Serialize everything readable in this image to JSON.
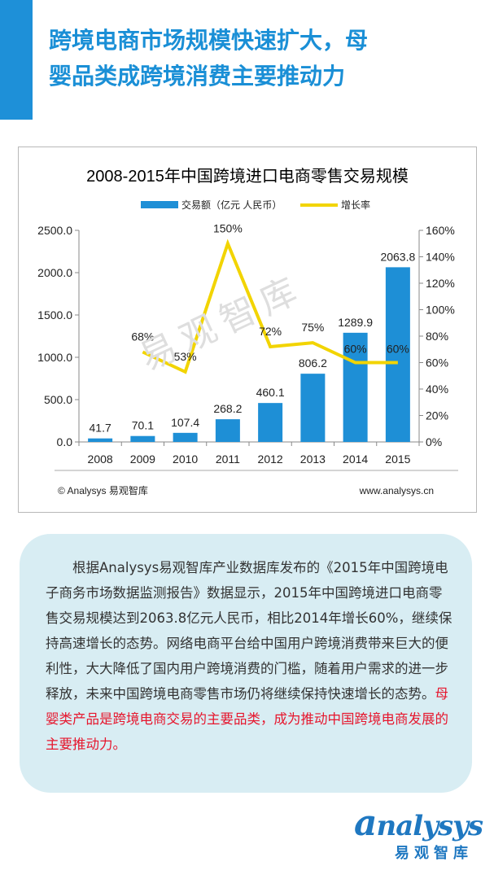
{
  "header": {
    "title_line1": "跨境电商市场规模快速扩大，母",
    "title_line2": "婴品类成跨境消费主要推动力"
  },
  "chart_data": {
    "type": "bar",
    "title": "2008-2015年中国跨境进口电商零售交易规模",
    "categories": [
      "2008",
      "2009",
      "2010",
      "2011",
      "2012",
      "2013",
      "2014",
      "2015"
    ],
    "series": [
      {
        "name": "交易额（亿元 人民币）",
        "type": "bar",
        "axis": "left",
        "color": "#1e8fd6",
        "values": [
          41.7,
          70.1,
          107.4,
          268.2,
          460.1,
          806.2,
          1289.9,
          2063.8
        ],
        "labels": [
          "41.7",
          "70.1",
          "107.4",
          "268.2",
          "460.1",
          "806.2",
          "1289.9",
          "2063.8"
        ]
      },
      {
        "name": "增长率",
        "type": "line",
        "axis": "right",
        "color": "#f2d400",
        "values": [
          null,
          68,
          53,
          150,
          72,
          75,
          60,
          60
        ],
        "labels": [
          "",
          "68%",
          "53%",
          "150%",
          "72%",
          "75%",
          "60%",
          "60%"
        ]
      }
    ],
    "ylim": [
      0,
      2500
    ],
    "y2lim": [
      0,
      160
    ],
    "yticks": [
      "0.0",
      "500.0",
      "1000.0",
      "1500.0",
      "2000.0",
      "2500.0"
    ],
    "y2ticks": [
      "0%",
      "20%",
      "40%",
      "60%",
      "80%",
      "100%",
      "120%",
      "140%",
      "160%"
    ],
    "legend": "top",
    "grid": false,
    "footer_left": "© Analysys 易观智库",
    "footer_right": "www.analysys.cn",
    "watermark": "易观智库"
  },
  "summary": {
    "normal": "根据Analysys易观智库产业数据库发布的《2015年中国跨境电子商务市场数据监测报告》数据显示，2015年中国跨境进口电商零售交易规模达到2063.8亿元人民币，相比2014年增长60%，继续保持高速增长的态势。网络电商平台给中国用户跨境消费带来巨大的便利性，大大降低了国内用户跨境消费的门槛，随着用户需求的进一步释放，未来中国跨境电商零售市场仍将继续保持快速增长的态势。",
    "highlight": "母婴类产品是跨境电商交易的主要品类，成为推动中国跨境电商发展的主要推动力。"
  },
  "brand": {
    "logo_first": "a",
    "logo_rest": "nalysys",
    "logo_sub": "易观智库"
  }
}
